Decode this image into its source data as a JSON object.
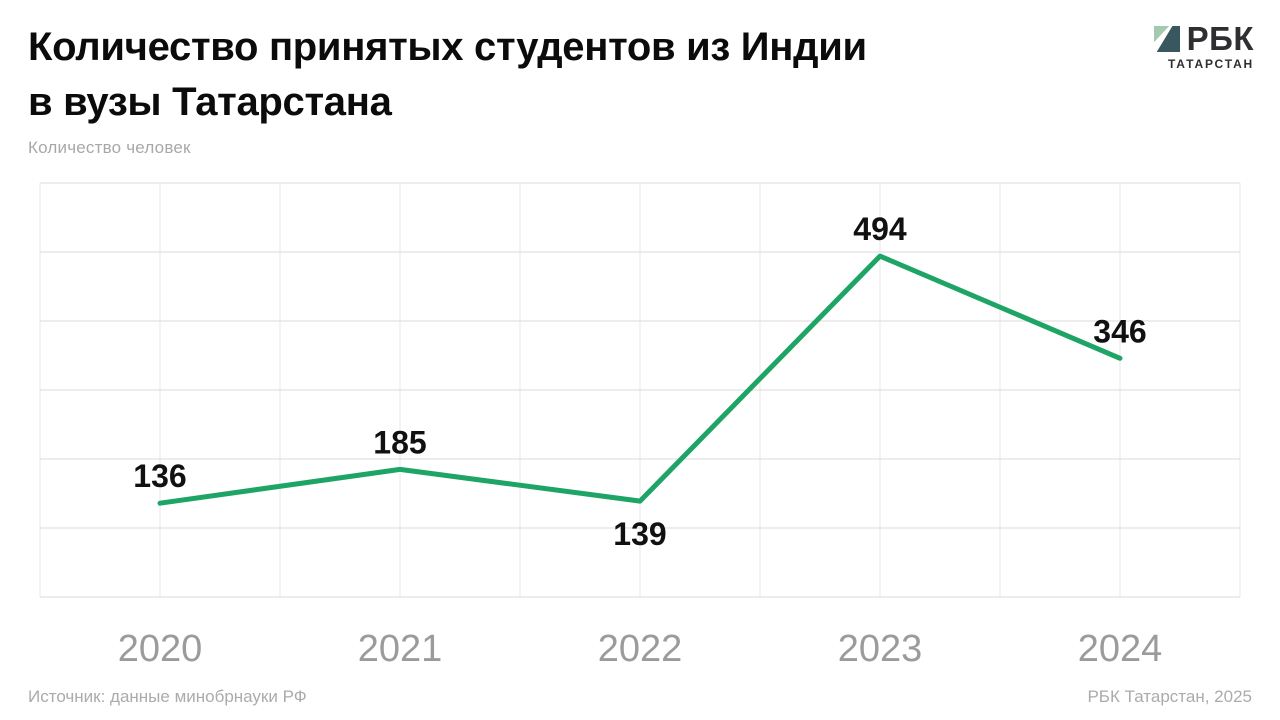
{
  "header": {
    "title_line1": "Количество принятых студентов из Индии",
    "title_line2": "в вузы Татарстана",
    "subtitle": "Количество человек",
    "logo": {
      "text": "РБК",
      "subtext": "ТАТАРСТАН",
      "mark_light_color": "#a3c9ae",
      "mark_dark_color": "#39575e"
    }
  },
  "chart_data": {
    "type": "line",
    "categories": [
      "2020",
      "2021",
      "2022",
      "2023",
      "2024"
    ],
    "values": [
      136,
      185,
      139,
      494,
      346
    ],
    "label_positions": [
      "above",
      "above",
      "below",
      "above",
      "above"
    ],
    "title": "Количество принятых студентов из Индии в вузы Татарстана",
    "xlabel": "",
    "ylabel": "Количество человек",
    "ylim": [
      0,
      600
    ],
    "y_grid_step": 100,
    "grid": "both",
    "legend": "none",
    "line_color": "#1ea565"
  },
  "footer": {
    "source": "Источник: данные минобрнауки РФ",
    "credit": "РБК Татарстан, 2025"
  }
}
